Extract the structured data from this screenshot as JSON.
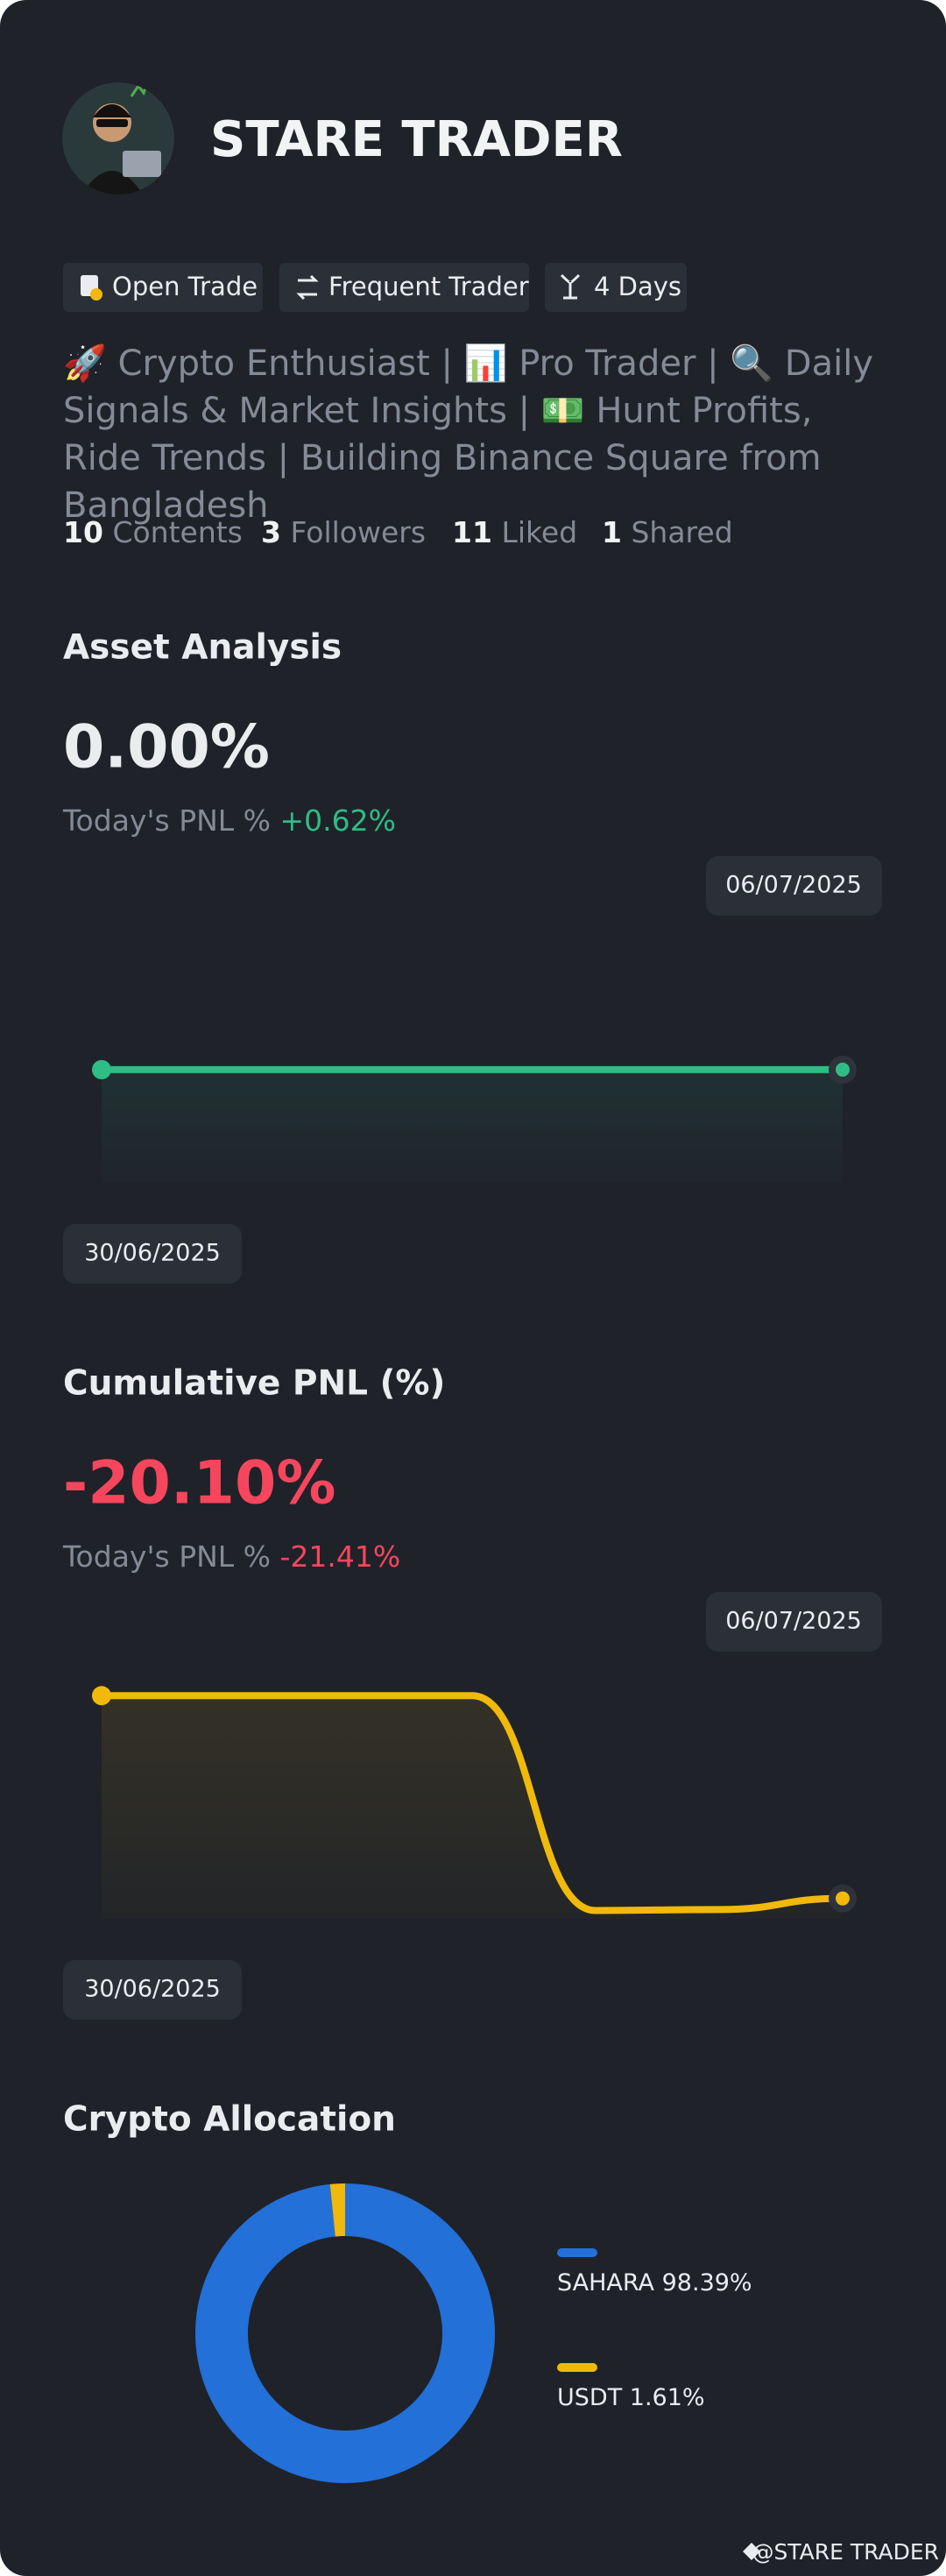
{
  "profile": {
    "name": "STARE TRADER",
    "tags": [
      "Open Trade",
      "Frequent Trader",
      "4 Days"
    ],
    "bio": "🚀 Crypto Enthusiast | 📊 Pro Trader | 🔍 Daily Signals & Market Insights | 💵 Hunt Profits, Ride Trends | Building Binance Square from Bangladesh",
    "stats": [
      {
        "value": 10,
        "label": "Contents"
      },
      {
        "value": 3,
        "label": "Followers"
      },
      {
        "value": 11,
        "label": "Liked"
      },
      {
        "value": 1,
        "label": "Shared"
      }
    ]
  },
  "asset_analysis": {
    "title": "Asset Analysis",
    "value": "0.00%",
    "pnl_label": "Today's PNL %",
    "pnl_value": "+0.62%",
    "chart": {
      "type": "line",
      "x": [
        "30/06/2025",
        null,
        null,
        null,
        null,
        null,
        "06/07/2025"
      ],
      "values": [
        0,
        0,
        0,
        0,
        0,
        0,
        0
      ],
      "color": "#2ebd85"
    }
  },
  "cumulative_pnl": {
    "title": "Cumulative PNL (%)",
    "value": "-20.10%",
    "pnl_label": "Today's PNL %",
    "pnl_value": "-21.41%",
    "chart": {
      "type": "line",
      "x": [
        "30/06/2025",
        null,
        null,
        null,
        null,
        null,
        "06/07/2025"
      ],
      "values": [
        0,
        0,
        0,
        0,
        -21.3,
        -21.2,
        -20.1
      ],
      "color": "#f0b90b"
    }
  },
  "crypto_allocation": {
    "title": "Crypto Allocation",
    "chart": {
      "type": "pie",
      "categories": [
        "SAHARA",
        "USDT"
      ],
      "values": [
        98.39,
        1.61
      ],
      "value_labels": [
        "98.39%",
        "1.61%"
      ],
      "colors": [
        "#2270d8",
        "#f0b90b"
      ]
    }
  },
  "footer": {
    "handle": "@STARE TRADER"
  }
}
